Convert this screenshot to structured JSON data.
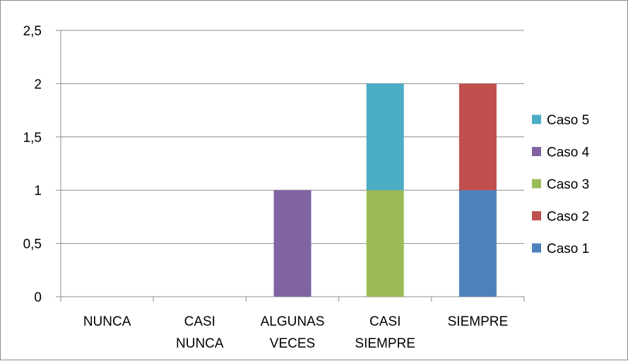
{
  "chart_data": {
    "type": "bar",
    "stacked": true,
    "categories": [
      [
        "NUNCA"
      ],
      [
        "CASI",
        "NUNCA"
      ],
      [
        "ALGUNAS",
        "VECES"
      ],
      [
        "CASI",
        "SIEMPRE"
      ],
      [
        "SIEMPRE"
      ]
    ],
    "series": [
      {
        "name": "Caso 1",
        "color": "#4f81bd",
        "values": [
          0,
          0,
          0,
          0,
          1
        ]
      },
      {
        "name": "Caso 2",
        "color": "#c0504d",
        "values": [
          0,
          0,
          0,
          0,
          1
        ]
      },
      {
        "name": "Caso 3",
        "color": "#9bbb59",
        "values": [
          0,
          0,
          0,
          1,
          0
        ]
      },
      {
        "name": "Caso 4",
        "color": "#8064a2",
        "values": [
          0,
          0,
          1,
          0,
          0
        ]
      },
      {
        "name": "Caso 5",
        "color": "#4bacc6",
        "values": [
          0,
          0,
          0,
          1,
          0
        ]
      }
    ],
    "yticks": [
      "0",
      "0,5",
      "1",
      "1,5",
      "2",
      "2,5"
    ],
    "ylim": [
      0,
      2.5
    ],
    "grid": true,
    "legend": "right",
    "legend_order": "reversed",
    "title": "",
    "xlabel": "",
    "ylabel": ""
  }
}
